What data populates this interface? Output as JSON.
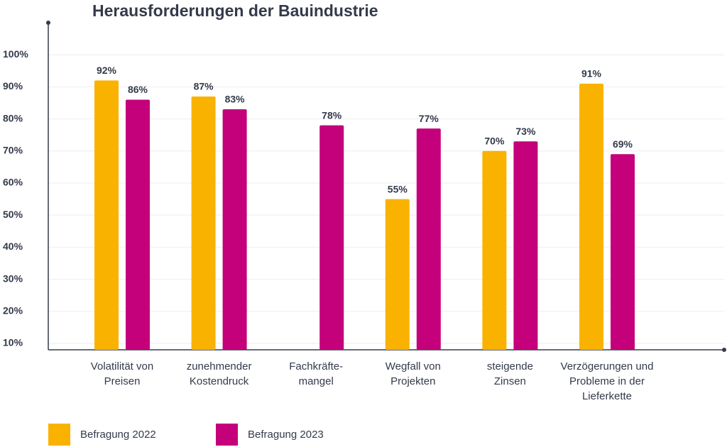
{
  "chart_data": {
    "type": "bar",
    "title": "Herausforderungen der Bauindustrie",
    "categories": [
      [
        "Volatilität von",
        "Preisen"
      ],
      [
        "zunehmender",
        "Kostendruck"
      ],
      [
        "Fachkräfte-",
        "mangel"
      ],
      [
        "Wegfall von",
        "Projekten"
      ],
      [
        "steigende",
        "Zinsen"
      ],
      [
        "Verzögerungen und",
        "Probleme in der",
        "Lieferkette"
      ]
    ],
    "series": [
      {
        "name": "Befragung 2022",
        "color": "#f9b200",
        "values": [
          92,
          87,
          null,
          55,
          70,
          91
        ],
        "value_labels": [
          "92%",
          "87%",
          null,
          "55%",
          "70%",
          "91%"
        ]
      },
      {
        "name": "Befragung 2023",
        "color": "#c4007a",
        "values": [
          86,
          83,
          78,
          77,
          73,
          69
        ],
        "value_labels": [
          "86%",
          "83%",
          "78%",
          "77%",
          "73%",
          "69%"
        ]
      }
    ],
    "ylim": [
      8,
      110
    ],
    "yticks": [
      {
        "value": 10,
        "label": "10%"
      },
      {
        "value": 20,
        "label": "20%"
      },
      {
        "value": 30,
        "label": "30%"
      },
      {
        "value": 40,
        "label": "40%"
      },
      {
        "value": 50,
        "label": "50%"
      },
      {
        "value": 60,
        "label": "60%"
      },
      {
        "value": 70,
        "label": "70%"
      },
      {
        "value": 80,
        "label": "80%"
      },
      {
        "value": 90,
        "label": "90%"
      },
      {
        "value": 100,
        "label": "100%"
      }
    ],
    "grid": true
  }
}
